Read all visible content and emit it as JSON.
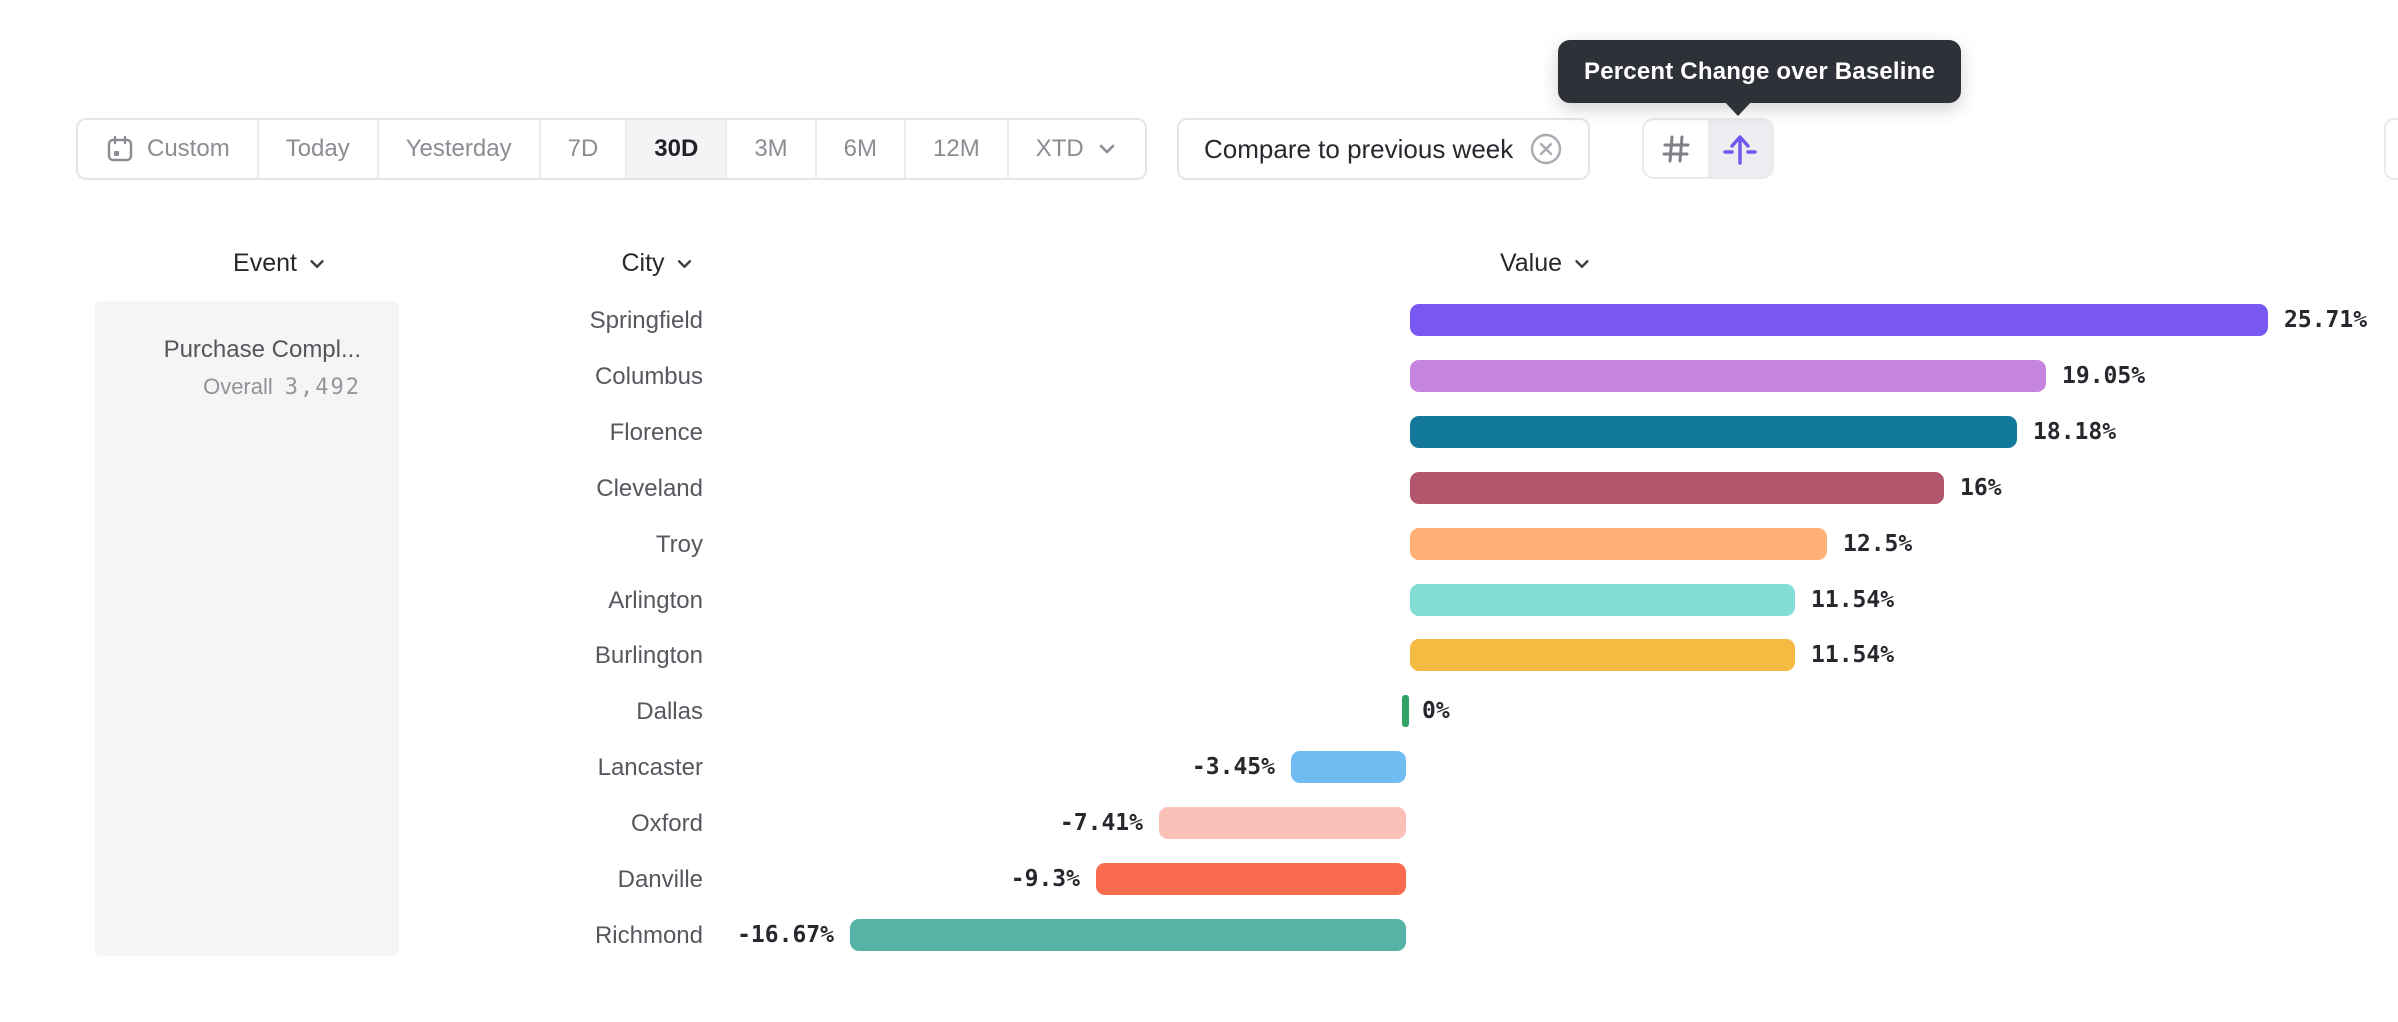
{
  "tooltip": {
    "text": "Percent Change over Baseline"
  },
  "toolbar": {
    "items": [
      {
        "label": "Custom",
        "icon": "calendar-icon",
        "selected": false
      },
      {
        "label": "Today",
        "selected": false
      },
      {
        "label": "Yesterday",
        "selected": false
      },
      {
        "label": "7D",
        "selected": false
      },
      {
        "label": "30D",
        "selected": true
      },
      {
        "label": "3M",
        "selected": false
      },
      {
        "label": "6M",
        "selected": false
      },
      {
        "label": "12M",
        "selected": false
      },
      {
        "label": "XTD",
        "chevron": true,
        "selected": false
      }
    ],
    "compare": {
      "label": "Compare to previous week",
      "icon": "close-circle-icon"
    },
    "view_toggle": {
      "left_icon": "grid-icon",
      "right_icon": "baseline-arrow-icon",
      "active": "right"
    }
  },
  "table": {
    "columns": [
      {
        "label": "Event"
      },
      {
        "label": "City"
      },
      {
        "label": "Value"
      }
    ],
    "event_card": {
      "title": "Purchase Compl...",
      "subtitle_label": "Overall",
      "subtitle_value": "3,492"
    }
  },
  "chart_data": {
    "type": "bar",
    "orientation": "horizontal",
    "unit": "percent",
    "title": "Percent Change over Baseline",
    "xlabel": "Value",
    "ylabel": "City",
    "xlim": [
      -16.67,
      25.71
    ],
    "grid": false,
    "categories": [
      "Springfield",
      "Columbus",
      "Florence",
      "Cleveland",
      "Troy",
      "Arlington",
      "Burlington",
      "Dallas",
      "Lancaster",
      "Oxford",
      "Danville",
      "Richmond"
    ],
    "values": [
      25.71,
      19.05,
      18.18,
      16,
      12.5,
      11.54,
      11.54,
      0,
      -3.45,
      -7.41,
      -9.3,
      -16.67
    ],
    "labels": [
      "25.71%",
      "19.05%",
      "18.18%",
      "16%",
      "12.5%",
      "11.54%",
      "11.54%",
      "0%",
      "-3.45%",
      "-7.41%",
      "-9.3%",
      "-16.67%"
    ],
    "colors": [
      "#7857F3",
      "#C685E1",
      "#13799A",
      "#B1566C",
      "#FFAF78",
      "#82DDD5",
      "#F5BA41",
      "#2FA265",
      "#6FBCF2",
      "#FBC1B9",
      "#F96B4E",
      "#56B3A6"
    ]
  },
  "colors": {
    "accent_purple": "#6E56EE",
    "tooltip_bg": "#2E3138",
    "border": "#E4E5E8",
    "selected_cell_bg": "#F4F4F6",
    "card_bg": "#F5F5F6",
    "text_dark": "#25282C",
    "text_gray": "#8A8D93",
    "zero_marker_green": "#2FA265"
  }
}
